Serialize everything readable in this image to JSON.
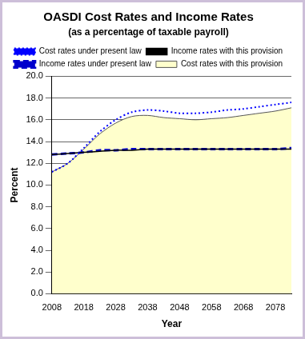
{
  "chart_data": {
    "type": "line",
    "title": "OASDI Cost Rates and Income Rates",
    "subtitle": "(as a percentage of taxable payroll)",
    "xlabel": "Year",
    "ylabel": "Percent",
    "x": [
      2008,
      2013,
      2018,
      2023,
      2028,
      2033,
      2038,
      2043,
      2048,
      2053,
      2058,
      2063,
      2068,
      2073,
      2078,
      2083
    ],
    "series": [
      {
        "name": "Cost rates with this provision",
        "type": "area",
        "color": "#FFFFCC",
        "line_style": "solid",
        "marker": "none",
        "values": [
          11.2,
          12.0,
          13.3,
          14.7,
          15.7,
          16.3,
          16.4,
          16.2,
          16.1,
          16.0,
          16.1,
          16.2,
          16.4,
          16.6,
          16.8,
          17.1
        ]
      },
      {
        "name": "Cost rates under present law",
        "type": "line",
        "color": "#0000FF",
        "line_style": "dotted",
        "marker": "none",
        "values": [
          11.2,
          12.0,
          13.4,
          14.9,
          16.0,
          16.7,
          16.9,
          16.8,
          16.6,
          16.6,
          16.7,
          16.9,
          17.0,
          17.2,
          17.4,
          17.6
        ]
      },
      {
        "name": "Income rates with this provision",
        "type": "line",
        "color": "#000000",
        "line_style": "solid",
        "marker": "none",
        "values": [
          12.8,
          12.9,
          13.0,
          13.1,
          13.2,
          13.2,
          13.3,
          13.3,
          13.3,
          13.3,
          13.3,
          13.3,
          13.3,
          13.3,
          13.3,
          13.3
        ]
      },
      {
        "name": "Income rates under present law",
        "type": "line",
        "color": "#0000CC",
        "line_style": "dashed",
        "marker": "none",
        "values": [
          12.8,
          12.9,
          13.0,
          13.2,
          13.2,
          13.3,
          13.3,
          13.3,
          13.3,
          13.3,
          13.3,
          13.3,
          13.3,
          13.3,
          13.3,
          13.4
        ]
      }
    ],
    "xlim": [
      2008,
      2083
    ],
    "xticks": [
      2008,
      2018,
      2028,
      2038,
      2048,
      2058,
      2068,
      2078
    ],
    "ylim": [
      0,
      20
    ],
    "yticks": [
      {
        "value": 0,
        "label": "0.0"
      },
      {
        "value": 2,
        "label": "2.0"
      },
      {
        "value": 4,
        "label": "4.0"
      },
      {
        "value": 6,
        "label": "6.0"
      },
      {
        "value": 8,
        "label": "8.0"
      },
      {
        "value": 10,
        "label": "10.0"
      },
      {
        "value": 12,
        "label": "12.0"
      },
      {
        "value": 14,
        "label": "14.0"
      },
      {
        "value": 16,
        "label": "16.0"
      },
      {
        "value": 18,
        "label": "18.0"
      },
      {
        "value": 20,
        "label": "20.0"
      }
    ],
    "grid": true,
    "legend": "top"
  }
}
